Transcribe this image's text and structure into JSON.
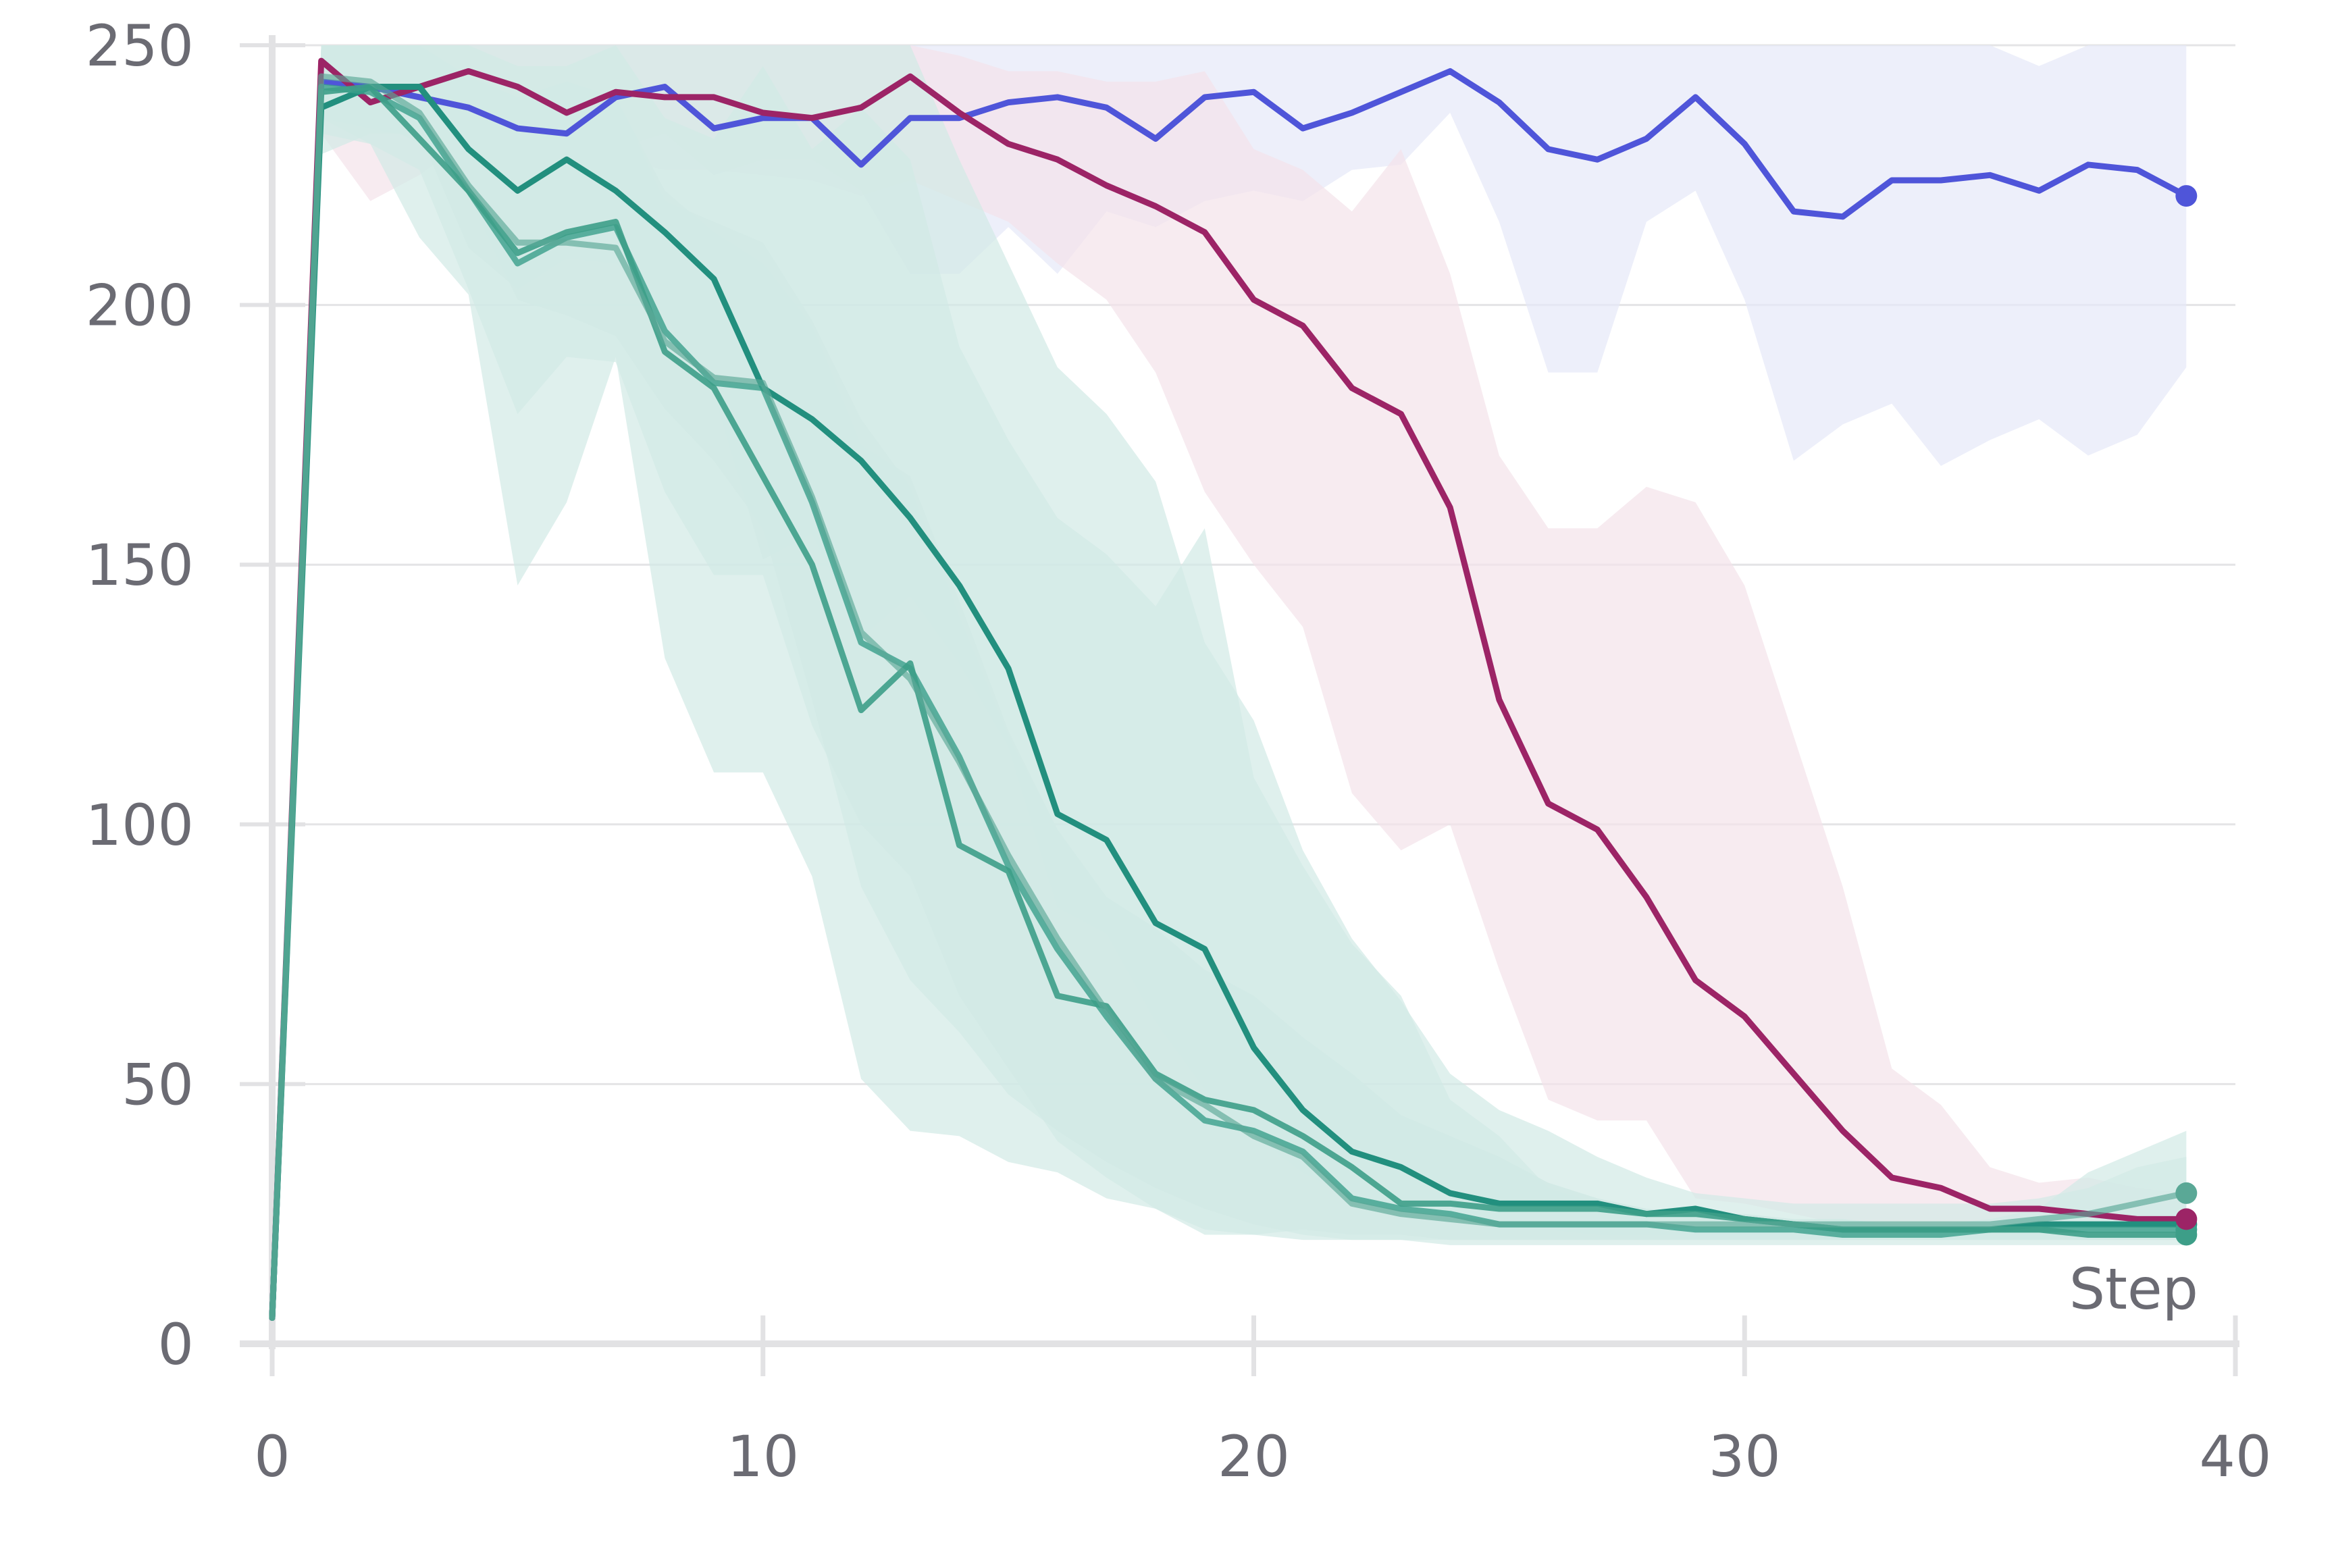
{
  "chart_data": {
    "type": "line",
    "title": "",
    "xlabel": "Step",
    "ylabel": "",
    "xlim": [
      0,
      40
    ],
    "ylim": [
      0,
      250
    ],
    "x_ticks": [
      0,
      10,
      20,
      30,
      40
    ],
    "y_ticks": [
      0,
      50,
      100,
      150,
      200,
      250
    ],
    "grid": "horizontal",
    "legend": "none",
    "x": [
      0,
      1,
      2,
      3,
      4,
      5,
      6,
      7,
      8,
      9,
      10,
      11,
      12,
      13,
      14,
      15,
      16,
      17,
      18,
      19,
      20,
      21,
      22,
      23,
      24,
      25,
      26,
      27,
      28,
      29,
      30,
      31,
      32,
      33,
      34,
      35,
      36,
      37,
      38,
      39
    ],
    "series": [
      {
        "color": "#4f55d9",
        "band_color": "#e6e8f8",
        "line_opacity": 1,
        "values": [
          5,
          243,
          242,
          240,
          238,
          234,
          233,
          240,
          242,
          234,
          236,
          236,
          227,
          236,
          236,
          239,
          240,
          238,
          232,
          240,
          241,
          234,
          237,
          241,
          245,
          239,
          230,
          228,
          232,
          240,
          231,
          218,
          217,
          224,
          224,
          225,
          222,
          227,
          226,
          221
        ],
        "band_upper": [
          5,
          250,
          250,
          250,
          250,
          250,
          250,
          250,
          250,
          250,
          250,
          250,
          250,
          250,
          250,
          250,
          250,
          250,
          250,
          250,
          250,
          250,
          250,
          250,
          250,
          250,
          250,
          250,
          250,
          250,
          250,
          250,
          250,
          250,
          250,
          250,
          246,
          250,
          250,
          250
        ],
        "band_lower": [
          5,
          236,
          234,
          232,
          230,
          228,
          227,
          230,
          233,
          225,
          228,
          228,
          222,
          206,
          206,
          215,
          206,
          218,
          215,
          220,
          222,
          220,
          226,
          227,
          237,
          216,
          187,
          187,
          216,
          222,
          201,
          170,
          177,
          181,
          169,
          174,
          178,
          171,
          175,
          188
        ]
      },
      {
        "color": "#9c2466",
        "band_color": "#f4e2ea",
        "line_opacity": 1,
        "values": [
          5,
          247,
          239,
          242,
          245,
          242,
          237,
          241,
          240,
          240,
          237,
          236,
          238,
          244,
          237,
          231,
          228,
          223,
          219,
          214,
          201,
          196,
          184,
          179,
          161,
          124,
          104,
          99,
          86,
          70,
          63,
          52,
          41,
          32,
          30,
          26,
          26,
          25,
          24,
          24
        ],
        "band_upper": [
          5,
          250,
          250,
          250,
          250,
          250,
          250,
          250,
          250,
          250,
          250,
          250,
          250,
          250,
          248,
          245,
          245,
          243,
          243,
          245,
          230,
          226,
          218,
          230,
          206,
          171,
          157,
          157,
          165,
          162,
          146,
          117,
          88,
          53,
          46,
          34,
          31,
          32,
          30,
          29
        ],
        "band_lower": [
          5,
          233,
          220,
          225,
          232,
          230,
          226,
          228,
          226,
          226,
          225,
          224,
          221,
          224,
          220,
          216,
          208,
          201,
          187,
          164,
          150,
          138,
          106,
          95,
          100,
          72,
          47,
          43,
          43,
          28,
          27,
          25,
          23,
          22,
          22,
          22,
          21,
          21,
          21,
          20
        ]
      },
      {
        "color": "#228f7e",
        "band_color": "#d2eae6",
        "line_opacity": 1,
        "values": [
          5,
          238,
          242,
          242,
          230,
          222,
          228,
          222,
          214,
          205,
          184,
          178,
          170,
          159,
          146,
          130,
          102,
          97,
          81,
          76,
          57,
          45,
          37,
          34,
          29,
          27,
          27,
          27,
          25,
          26,
          24,
          23,
          22,
          22,
          22,
          22,
          23,
          23,
          23,
          23
        ],
        "band_upper": [
          5,
          250,
          250,
          250,
          250,
          246,
          246,
          250,
          236,
          232,
          246,
          230,
          238,
          228,
          192,
          174,
          159,
          152,
          142,
          157,
          109,
          92,
          77,
          67,
          47,
          40,
          30,
          27,
          26,
          25,
          24,
          24,
          24,
          23,
          23,
          24,
          26,
          33,
          37,
          41
        ],
        "band_lower": [
          5,
          229,
          233,
          233,
          211,
          203,
          209,
          208,
          198,
          183,
          151,
          156,
          136,
          144,
          131,
          115,
          84,
          79,
          62,
          49,
          40,
          33,
          28,
          24,
          24,
          22,
          22,
          21,
          21,
          21,
          21,
          21,
          20,
          20,
          20,
          20,
          20,
          20,
          20,
          20
        ]
      },
      {
        "color": "#3a9f8b",
        "band_color": "#d2eae6",
        "line_opacity": 0.8,
        "values": [
          5,
          242,
          241,
          236,
          222,
          208,
          213,
          215,
          195,
          185,
          184,
          162,
          135,
          130,
          113,
          92,
          76,
          63,
          51,
          43,
          41,
          37,
          28,
          26,
          25,
          23,
          23,
          23,
          23,
          22,
          22,
          22,
          21,
          21,
          21,
          22,
          22,
          22,
          22,
          22
        ],
        "band_upper": [
          5,
          250,
          250,
          250,
          244,
          240,
          243,
          240,
          220,
          216,
          212,
          197,
          178,
          165,
          140,
          117,
          99,
          86,
          80,
          72,
          67,
          59,
          52,
          44,
          40,
          36,
          31,
          28,
          26,
          25,
          25,
          24,
          24,
          23,
          23,
          23,
          23,
          23,
          23,
          23
        ],
        "band_lower": [
          5,
          236,
          231,
          226,
          203,
          179,
          190,
          189,
          164,
          148,
          148,
          119,
          100,
          90,
          67,
          53,
          39,
          32,
          26,
          22,
          21,
          20,
          20,
          20,
          19,
          19,
          19,
          19,
          19,
          19,
          19,
          19,
          19,
          19,
          19,
          19,
          19,
          19,
          19,
          19
        ]
      },
      {
        "color": "#3d9e88",
        "band_color": "#d2eae6",
        "line_opacity": 0.9,
        "values": [
          5,
          241,
          242,
          232,
          222,
          210,
          214,
          216,
          191,
          184,
          167,
          150,
          122,
          131,
          96,
          91,
          67,
          65,
          52,
          47,
          45,
          40,
          34,
          27,
          27,
          26,
          26,
          26,
          25,
          25,
          24,
          23,
          22,
          22,
          22,
          22,
          22,
          21,
          21,
          21
        ],
        "band_upper": [
          5,
          250,
          250,
          250,
          244,
          238,
          243,
          240,
          222,
          214,
          208,
          196,
          173,
          167,
          143,
          118,
          99,
          86,
          80,
          72,
          67,
          59,
          52,
          44,
          40,
          36,
          31,
          28,
          26,
          25,
          25,
          24,
          24,
          23,
          23,
          23,
          23,
          23,
          23,
          23
        ],
        "band_lower": [
          5,
          233,
          231,
          213,
          202,
          146,
          162,
          190,
          132,
          110,
          110,
          90,
          51,
          41,
          40,
          35,
          33,
          28,
          26,
          21,
          21,
          22,
          21,
          21,
          20,
          20,
          20,
          20,
          20,
          20,
          20,
          20,
          20,
          20,
          20,
          20,
          20,
          20,
          20,
          20
        ]
      },
      {
        "color": "#5aa896",
        "band_color": "#d2eae6",
        "line_opacity": 0.65,
        "values": [
          5,
          244,
          243,
          237,
          223,
          212,
          212,
          211,
          193,
          186,
          185,
          163,
          137,
          128,
          112,
          94,
          78,
          64,
          51,
          46,
          40,
          36,
          27,
          25,
          24,
          23,
          23,
          23,
          23,
          23,
          23,
          23,
          23,
          23,
          23,
          23,
          24,
          25,
          27,
          29
        ],
        "band_upper": [
          5,
          250,
          250,
          250,
          250,
          250,
          250,
          250,
          250,
          250,
          250,
          250,
          250,
          250,
          228,
          208,
          188,
          179,
          166,
          135,
          120,
          95,
          78,
          66,
          52,
          45,
          41,
          36,
          32,
          29,
          28,
          27,
          27,
          27,
          27,
          27,
          28,
          30,
          34,
          36
        ],
        "band_lower": [
          5,
          238,
          236,
          231,
          221,
          201,
          198,
          194,
          180,
          170,
          157,
          124,
          88,
          70,
          60,
          48,
          41,
          35,
          30,
          26,
          23,
          21,
          20,
          20,
          20,
          20,
          20,
          20,
          20,
          20,
          20,
          20,
          20,
          20,
          20,
          20,
          20,
          20,
          20,
          20
        ]
      }
    ]
  }
}
